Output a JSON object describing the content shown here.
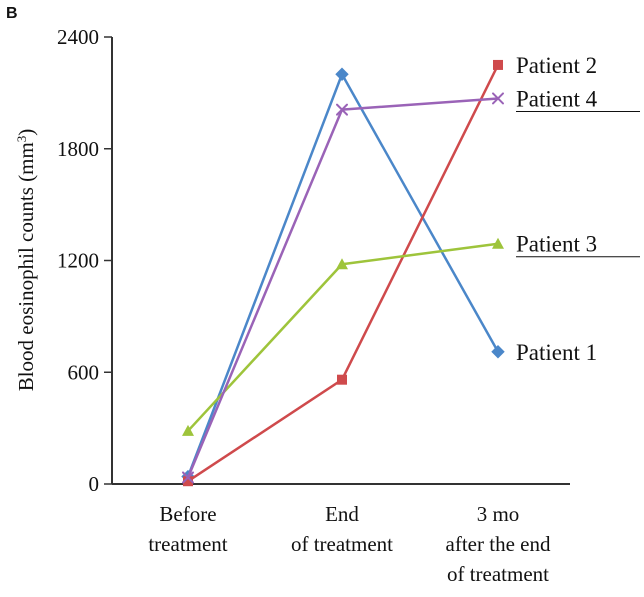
{
  "panel_label": "B",
  "chart_data": {
    "type": "line",
    "ylabel": "Blood eosinophil counts (mm3)",
    "ylabel_base": "Blood eosinophil counts (mm",
    "ylabel_sup": "3",
    "ylabel_close": ")",
    "ylim": [
      0,
      2400
    ],
    "yticks": [
      0,
      600,
      1200,
      1800,
      2400
    ],
    "yticks_labels": [
      "0",
      "600",
      "1200",
      "1800",
      "2400"
    ],
    "categories": [
      [
        "Before",
        "treatment"
      ],
      [
        "End",
        "of treatment"
      ],
      [
        "3 mo",
        "after the end",
        "of treatment"
      ]
    ],
    "series": [
      {
        "name": "Patient 1",
        "color": "#4b87c9",
        "marker": "diamond",
        "values": [
          40,
          2200,
          710
        ],
        "underline": false
      },
      {
        "name": "Patient 2",
        "color": "#cf4a4c",
        "marker": "square",
        "values": [
          15,
          560,
          2250
        ],
        "underline": false
      },
      {
        "name": "Patient 3",
        "color": "#9ec43b",
        "marker": "triangle",
        "values": [
          285,
          1180,
          1290
        ],
        "underline": true
      },
      {
        "name": "Patient 4",
        "color": "#9a63b7",
        "marker": "x",
        "values": [
          35,
          2010,
          2070
        ],
        "underline": true
      }
    ]
  }
}
